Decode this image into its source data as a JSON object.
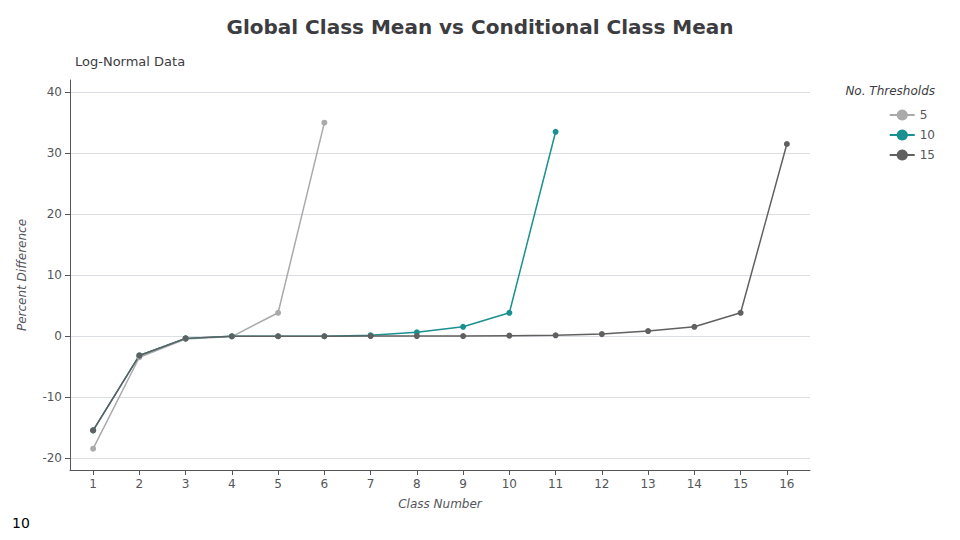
{
  "chart_data": {
    "type": "line",
    "title": "Global Class Mean vs Conditional Class Mean",
    "subtitle": "Log-Normal Data",
    "xlabel": "Class Number",
    "ylabel": "Percent Difference",
    "legend_title": "No. Thresholds",
    "annotations": [
      "10"
    ],
    "series": [
      {
        "name": "5",
        "color": "#aaaaaa",
        "x": [
          1,
          2,
          3,
          4,
          5,
          6
        ],
        "values": [
          -18.5,
          -3.5,
          -0.5,
          -0.1,
          3.8,
          35.0
        ]
      },
      {
        "name": "10",
        "color": "#1a9090",
        "x": [
          1,
          2,
          3,
          4,
          5,
          6,
          7,
          8,
          9,
          10,
          11
        ],
        "values": [
          -15.5,
          -3.2,
          -0.4,
          -0.05,
          -0.05,
          -0.05,
          0.1,
          0.6,
          1.5,
          3.8,
          33.5
        ]
      },
      {
        "name": "15",
        "color": "#606060",
        "x": [
          1,
          2,
          3,
          4,
          5,
          6,
          7,
          8,
          9,
          10,
          11,
          12,
          13,
          14,
          15,
          16
        ],
        "values": [
          -15.5,
          -3.2,
          -0.4,
          -0.05,
          -0.05,
          -0.05,
          -0.02,
          -0.02,
          -0.02,
          0.05,
          0.1,
          0.3,
          0.8,
          1.5,
          3.8,
          31.5
        ]
      }
    ],
    "xlim": [
      0.5,
      16.5
    ],
    "xticks": [
      1,
      2,
      3,
      4,
      5,
      6,
      7,
      8,
      9,
      10,
      11,
      12,
      13,
      14,
      15,
      16
    ],
    "ylim": [
      -22,
      42
    ],
    "yticks": [
      -20,
      -10,
      0,
      10,
      20,
      30,
      40
    ],
    "grid": true,
    "legend": "upper right",
    "marker": "circle"
  }
}
